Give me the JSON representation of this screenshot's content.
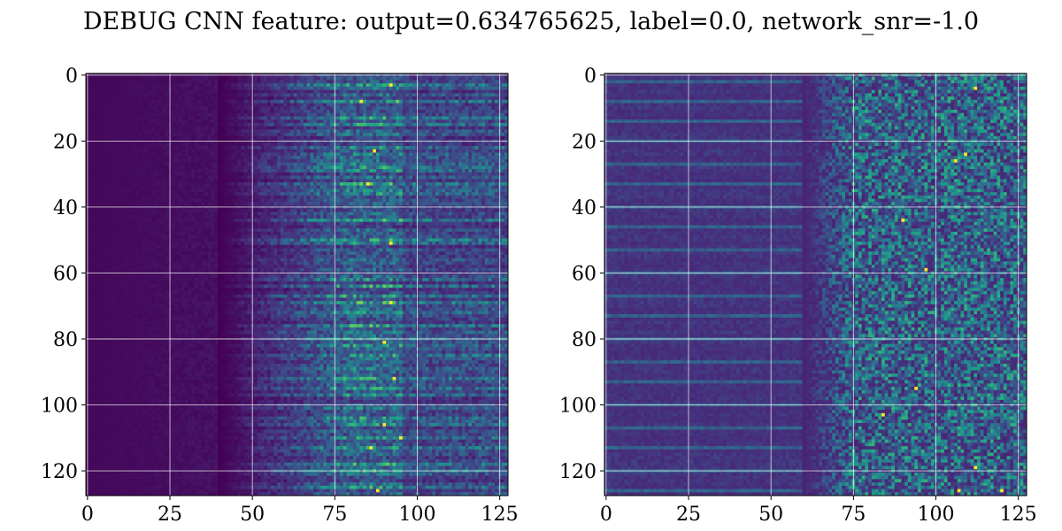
{
  "title": "DEBUG CNN feature: output=0.634765625, label=0.0, network_snr=-1.0",
  "chart_data": [
    {
      "type": "heatmap",
      "title": "",
      "xlabel": "",
      "ylabel": "",
      "rows": 128,
      "cols": 128,
      "xlim": [
        -0.5,
        127.5
      ],
      "ylim": [
        127.5,
        -0.5
      ],
      "xticks": [
        0,
        25,
        50,
        75,
        100,
        125
      ],
      "yticks": [
        0,
        20,
        40,
        60,
        80,
        100,
        120
      ],
      "grid": true,
      "colormap": "viridis",
      "description_of_pattern": "",
      "structure": {
        "dark_until_col": 40,
        "ramp_cols": [
          40,
          80
        ],
        "bright_rows": [
          3,
          8,
          13,
          15,
          22,
          28,
          29,
          33,
          36,
          44,
          50,
          51,
          62,
          64,
          67,
          69,
          72,
          76,
          80,
          82,
          85,
          92,
          95,
          97,
          104,
          106,
          110,
          113,
          118,
          120,
          125
        ],
        "hotspots": [
          [
            92,
            3
          ],
          [
            83,
            8
          ],
          [
            87,
            23
          ],
          [
            85,
            33
          ],
          [
            92,
            51
          ],
          [
            92,
            69
          ],
          [
            90,
            81
          ],
          [
            93,
            92
          ],
          [
            90,
            106
          ],
          [
            95,
            110
          ],
          [
            86,
            113
          ],
          [
            88,
            126
          ]
        ]
      }
    },
    {
      "type": "heatmap",
      "title": "",
      "xlabel": "",
      "ylabel": "",
      "rows": 128,
      "cols": 128,
      "xlim": [
        -0.5,
        127.5
      ],
      "ylim": [
        127.5,
        -0.5
      ],
      "xticks": [
        0,
        25,
        50,
        75,
        100,
        125
      ],
      "yticks": [
        0,
        20,
        40,
        60,
        80,
        100,
        120
      ],
      "grid": true,
      "colormap": "viridis",
      "structure": {
        "dark_until_col": 0,
        "ramp_cols": [
          60,
          75
        ],
        "bright_rows": [
          2,
          8,
          14,
          20,
          27,
          33,
          40,
          46,
          53,
          60,
          67,
          73,
          80,
          87,
          93,
          100,
          107,
          113,
          120,
          126
        ],
        "hotspots": [
          [
            112,
            4
          ],
          [
            109,
            24
          ],
          [
            106,
            26
          ],
          [
            90,
            44
          ],
          [
            97,
            59
          ],
          [
            94,
            95
          ],
          [
            84,
            103
          ],
          [
            112,
            119
          ],
          [
            107,
            126
          ],
          [
            120,
            126
          ]
        ]
      }
    }
  ],
  "colors": {
    "background": "#ffffff",
    "grid": "#ffffff",
    "axis": "#000000",
    "viridis_stops": [
      "#440154",
      "#482878",
      "#3e4a89",
      "#31688e",
      "#26828e",
      "#1f9e89",
      "#35b779",
      "#6ece58",
      "#b5de2b",
      "#fde725"
    ]
  }
}
